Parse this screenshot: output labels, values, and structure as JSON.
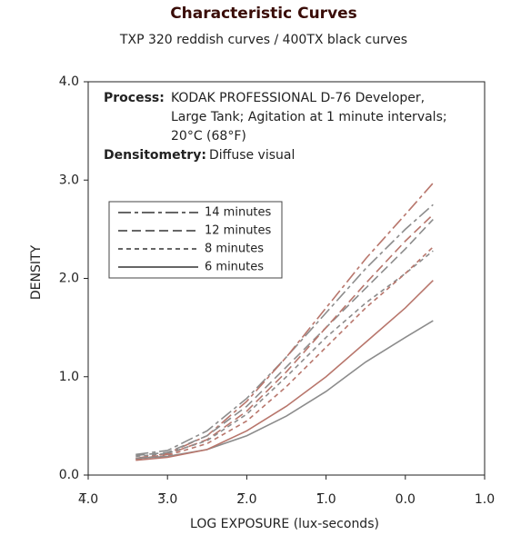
{
  "chart_data": {
    "type": "line",
    "title": "Characteristic Curves",
    "subtitle": "TXP 320 reddish curves / 400TX black curves",
    "xlabel": "LOG EXPOSURE (lux-seconds)",
    "ylabel": "DENSITY",
    "process_label": "Process:",
    "process_lines": [
      "KODAK PROFESSIONAL D-76 Developer,",
      "Large Tank; Agitation at 1 minute intervals;",
      "20°C (68°F)"
    ],
    "densitometry_label": "Densitometry:",
    "densitometry_text": "Diffuse visual",
    "xlim": [
      -4,
      1
    ],
    "ylim": [
      0,
      4
    ],
    "xticks": [
      {
        "value": -4,
        "label": "4̅.0"
      },
      {
        "value": -3,
        "label": "3̅.0"
      },
      {
        "value": -2,
        "label": "2̅.0"
      },
      {
        "value": -1,
        "label": "1̅.0"
      },
      {
        "value": 0,
        "label": "0.0"
      },
      {
        "value": 1,
        "label": "1.0"
      }
    ],
    "yticks": [
      {
        "value": 0,
        "label": "0.0"
      },
      {
        "value": 1,
        "label": "1.0"
      },
      {
        "value": 2,
        "label": "2.0"
      },
      {
        "value": 3,
        "label": "3.0"
      },
      {
        "value": 4,
        "label": "4.0"
      }
    ],
    "x": [
      -3.4,
      -3.0,
      -2.5,
      -2.0,
      -1.5,
      -1.0,
      -0.5,
      0.0,
      0.35
    ],
    "series": [
      {
        "name": "14 minutes",
        "dash": "14 4 4 4",
        "curves": [
          {
            "color": "#8c8c8c",
            "values": [
              0.21,
              0.25,
              0.45,
              0.78,
              1.2,
              1.65,
              2.1,
              2.5,
              2.75
            ]
          },
          {
            "color": "#b8766c",
            "values": [
              0.17,
              0.22,
              0.4,
              0.75,
              1.2,
              1.7,
              2.2,
              2.65,
              2.97
            ]
          }
        ]
      },
      {
        "name": "12 minutes",
        "dash": "10 5",
        "curves": [
          {
            "color": "#8c8c8c",
            "values": [
              0.2,
              0.23,
              0.4,
              0.7,
              1.1,
              1.5,
              1.9,
              2.3,
              2.6
            ]
          },
          {
            "color": "#b8766c",
            "values": [
              0.16,
              0.21,
              0.36,
              0.65,
              1.05,
              1.5,
              1.95,
              2.38,
              2.65
            ]
          }
        ]
      },
      {
        "name": "8 minutes",
        "dash": "5 4",
        "curves": [
          {
            "color": "#8c8c8c",
            "values": [
              0.19,
              0.22,
              0.35,
              0.62,
              1.0,
              1.4,
              1.75,
              2.05,
              2.28
            ]
          },
          {
            "color": "#b8766c",
            "values": [
              0.16,
              0.2,
              0.32,
              0.55,
              0.9,
              1.3,
              1.7,
              2.05,
              2.32
            ]
          }
        ]
      },
      {
        "name": "6 minutes",
        "dash": "none",
        "curves": [
          {
            "color": "#8c8c8c",
            "values": [
              0.17,
              0.19,
              0.26,
              0.4,
              0.6,
              0.85,
              1.15,
              1.4,
              1.57
            ]
          },
          {
            "color": "#b8766c",
            "values": [
              0.15,
              0.18,
              0.26,
              0.45,
              0.7,
              1.0,
              1.35,
              1.7,
              1.98
            ]
          }
        ]
      }
    ]
  }
}
